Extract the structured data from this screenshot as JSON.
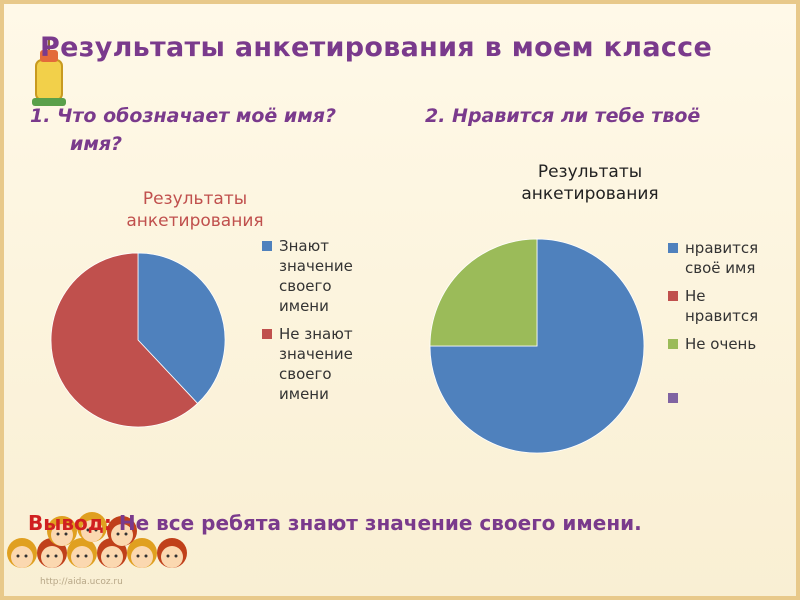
{
  "slide": {
    "title": "Результаты анкетирования в моем классе",
    "question1_line1": "1. Что обозначает моё имя?",
    "question1_line2": "имя?",
    "question2": "2. Нравится ли тебе твоё",
    "conclusion_lead": "Вывод:",
    "conclusion_rest": " Не все ребята знают значение своего имени.",
    "watermark": "http://aida.ucoz.ru"
  },
  "colors": {
    "blue": "#4f81bd",
    "red": "#c0504d",
    "green": "#9bbb59",
    "purple": "#8064a2",
    "title": "#7a3a8c"
  },
  "chart_data": [
    {
      "type": "pie",
      "title": "Результаты анкетирования",
      "legend_position": "right",
      "categories": [
        "Знают значение своего имени",
        "Не знают значение своего имени"
      ],
      "values": [
        38,
        62
      ]
    },
    {
      "type": "pie",
      "title": "Результаты анкетирования",
      "legend_position": "right",
      "categories": [
        "нравится своё имя",
        "Не нравится",
        "Не очень",
        ""
      ],
      "values": [
        75,
        0,
        25,
        0
      ]
    }
  ],
  "legends": {
    "chart1": [
      {
        "line1": "Знают",
        "line2": "значение",
        "line3": "своего",
        "line4": "имени"
      },
      {
        "line1": "Не знают",
        "line2": "значение",
        "line3": "своего",
        "line4": "имени"
      }
    ],
    "chart2": [
      {
        "line1": "нравится",
        "line2": "своё имя"
      },
      {
        "line1": "Не",
        "line2": "нравится"
      },
      {
        "line1": "Не очень",
        "line2": ""
      },
      {
        "line1": "",
        "line2": ""
      }
    ]
  }
}
